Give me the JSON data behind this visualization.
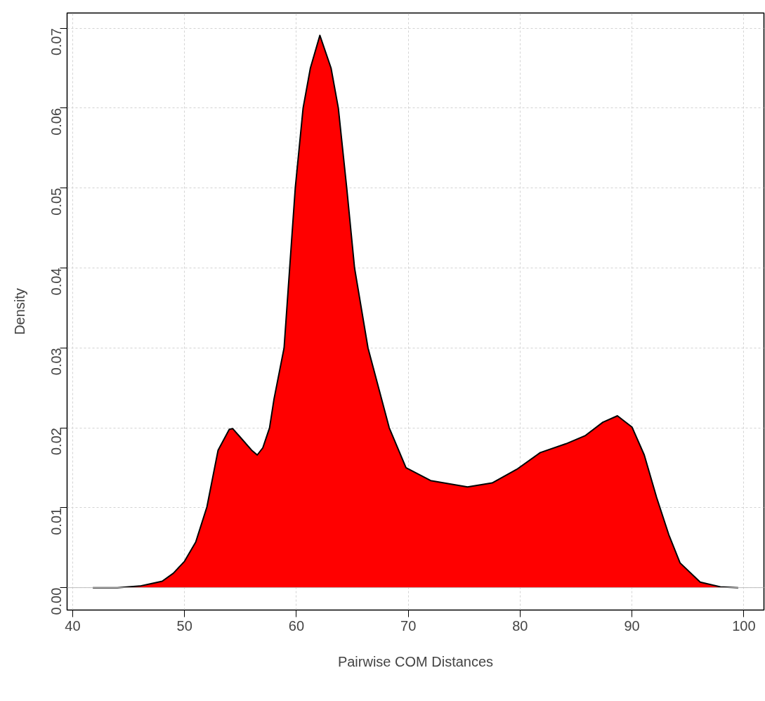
{
  "chart_data": {
    "type": "area",
    "xlabel": "Pairwise COM Distances",
    "ylabel": "Density",
    "x": [
      41.8,
      44,
      46,
      47,
      48,
      49,
      50,
      51,
      52,
      53,
      54,
      54.3,
      55,
      56,
      56.5,
      57,
      57.6,
      58,
      58.9,
      59.4,
      59.9,
      60.6,
      61.25,
      62.1,
      63.1,
      63.75,
      64.5,
      65.2,
      66.4,
      68.3,
      69.8,
      72,
      75.3,
      77.5,
      79.7,
      81.8,
      84.1,
      85.8,
      87.4,
      88.7,
      90,
      91.1,
      92.2,
      93.3,
      94.3,
      96.1,
      97.9,
      99.5
    ],
    "series": [
      {
        "color": "#ff0000",
        "values": [
          0,
          0,
          0.0002,
          0.0005,
          0.0008,
          0.0018,
          0.0033,
          0.0057,
          0.0101,
          0.0172,
          0.0198,
          0.0199,
          0.0188,
          0.0172,
          0.0166,
          0.0175,
          0.02,
          0.0236,
          0.03,
          0.04,
          0.05,
          0.06,
          0.065,
          0.0691,
          0.065,
          0.06,
          0.05,
          0.04,
          0.03,
          0.02,
          0.015,
          0.0134,
          0.0126,
          0.0131,
          0.0148,
          0.0169,
          0.018,
          0.019,
          0.0207,
          0.0215,
          0.0201,
          0.0166,
          0.0113,
          0.0066,
          0.0031,
          0.0007,
          0.0001,
          0
        ]
      }
    ],
    "xlim": [
      39.5,
      101.8
    ],
    "ylim": [
      -0.0028,
      0.0719
    ],
    "xticks": [
      40,
      50,
      60,
      70,
      80,
      90,
      100
    ],
    "yticks": [
      {
        "value": 0,
        "label": "0.00"
      },
      {
        "value": 0.01,
        "label": "0.01"
      },
      {
        "value": 0.02,
        "label": "0.02"
      },
      {
        "value": 0.03,
        "label": "0.03"
      },
      {
        "value": 0.04,
        "label": "0.04"
      },
      {
        "value": 0.05,
        "label": "0.05"
      },
      {
        "value": 0.06,
        "label": "0.06"
      },
      {
        "value": 0.07,
        "label": "0.07"
      }
    ],
    "grid": true,
    "ref_lines": [
      {
        "axis": "y",
        "value": 0,
        "color": "#bebebe"
      }
    ]
  }
}
